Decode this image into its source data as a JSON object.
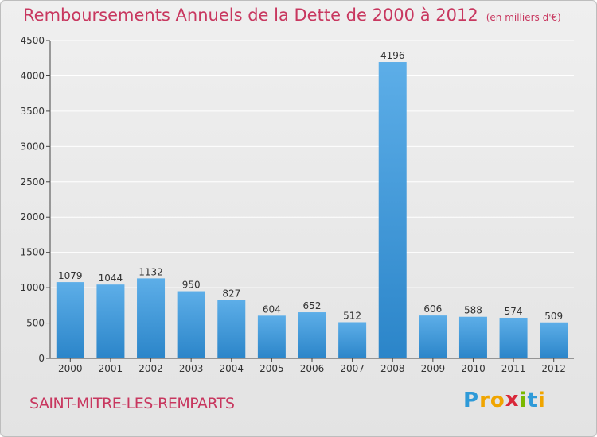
{
  "title": "Remboursements Annuels de la Dette de 2000 à 2012",
  "unit_note": "(en milliers d'€)",
  "town": "SAINT-MITRE-LES-REMPARTS",
  "logo": {
    "text": "Proxiti",
    "letters": [
      {
        "ch": "P",
        "color": "#2e9ad8"
      },
      {
        "ch": "r",
        "color": "#f0a500"
      },
      {
        "ch": "o",
        "color": "#f0a500"
      },
      {
        "ch": "x",
        "color": "#d9283a"
      },
      {
        "ch": "i",
        "color": "#7ab800"
      },
      {
        "ch": "t",
        "color": "#2e9ad8"
      },
      {
        "ch": "i",
        "color": "#f0a500"
      }
    ]
  },
  "colors": {
    "bar_light": "#5daee8",
    "bar_dark": "#2b85c9",
    "title": "#c8375f",
    "grid": "#ffffff",
    "axis": "#444444"
  },
  "chart_data": {
    "type": "bar",
    "categories": [
      "2000",
      "2001",
      "2002",
      "2003",
      "2004",
      "2005",
      "2006",
      "2007",
      "2008",
      "2009",
      "2010",
      "2011",
      "2012"
    ],
    "values": [
      1079,
      1044,
      1132,
      950,
      827,
      604,
      652,
      512,
      4196,
      606,
      588,
      574,
      509
    ],
    "yticks": [
      0,
      500,
      1000,
      1500,
      2000,
      2500,
      3000,
      3500,
      4000,
      4500
    ],
    "ylim": [
      0,
      4500
    ],
    "grid": true,
    "data_labels": true,
    "legend": false
  }
}
